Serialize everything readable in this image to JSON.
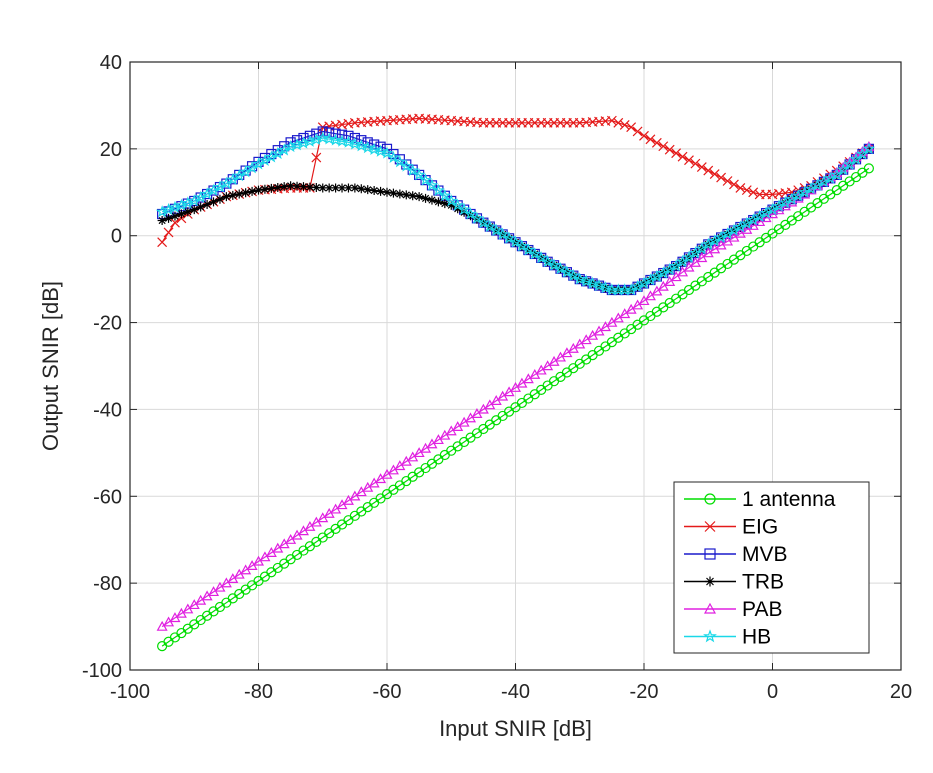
{
  "chart_data": {
    "type": "line",
    "title": "",
    "xlabel": "Input SNIR [dB]",
    "ylabel": "Output SNIR [dB]",
    "xlim": [
      -100,
      20
    ],
    "ylim": [
      -100,
      40
    ],
    "xticks": [
      -100,
      -80,
      -60,
      -40,
      -20,
      0,
      20
    ],
    "yticks": [
      -100,
      -80,
      -60,
      -40,
      -20,
      0,
      20,
      40
    ],
    "xtick_labels": [
      "-100",
      "-80",
      "-60",
      "-40",
      "-20",
      "0",
      "20"
    ],
    "ytick_labels": [
      "-100",
      "-80",
      "-60",
      "-40",
      "-20",
      "0",
      "20",
      "40"
    ],
    "grid": true,
    "legend_position": "bottom-right",
    "x_range": [
      -95,
      15
    ],
    "x_step": 1,
    "series": [
      {
        "name": "1 antenna",
        "color": "#00dd00",
        "marker": "circle",
        "x": [
          -95,
          15
        ],
        "y": [
          -94.5,
          15.5
        ]
      },
      {
        "name": "EIG",
        "color": "#e41a1a",
        "marker": "x",
        "x": [
          -95,
          -93,
          -90,
          -85,
          -80,
          -75,
          -72,
          -70,
          -65,
          -60,
          -55,
          -50,
          -45,
          -40,
          -35,
          -30,
          -25,
          -22,
          -20,
          -15,
          -10,
          -5,
          -2,
          0,
          3,
          6,
          10,
          15
        ],
        "y": [
          -1.5,
          3,
          6,
          9,
          10.5,
          11,
          11,
          25,
          26,
          26.5,
          27,
          26.5,
          26,
          26,
          26,
          26,
          26.5,
          25,
          23,
          19,
          15,
          11,
          9.5,
          9.5,
          10,
          11.5,
          15,
          20
        ]
      },
      {
        "name": "MVB",
        "color": "#1a1acc",
        "marker": "square",
        "x": [
          -95,
          -90,
          -85,
          -80,
          -75,
          -70,
          -66,
          -60,
          -55,
          -50,
          -45,
          -40,
          -35,
          -30,
          -25,
          -22,
          -20,
          -15,
          -10,
          -5,
          0,
          5,
          10,
          15
        ],
        "y": [
          5,
          8,
          12,
          17,
          21.5,
          24,
          23,
          20,
          14,
          8,
          3,
          -1.5,
          -6,
          -10,
          -12.5,
          -12.5,
          -11,
          -7,
          -2,
          2,
          6,
          10,
          14,
          20
        ]
      },
      {
        "name": "TRB",
        "color": "#000000",
        "marker": "asterisk",
        "x": [
          -95,
          -90,
          -85,
          -80,
          -75,
          -70,
          -65,
          -60,
          -55,
          -50,
          -45,
          -40,
          -35,
          -30,
          -25,
          -22,
          -20,
          -15,
          -10,
          -5,
          0,
          5,
          10,
          15
        ],
        "y": [
          3.5,
          6,
          9,
          10.5,
          11.5,
          11,
          11,
          10,
          9,
          7,
          3,
          -1.5,
          -6,
          -10,
          -12.5,
          -12.5,
          -11,
          -7,
          -2,
          2,
          6,
          10,
          14,
          20
        ]
      },
      {
        "name": "PAB",
        "color": "#e020e0",
        "marker": "triangle",
        "x": [
          -95,
          -20,
          -15,
          -10,
          -5,
          0,
          5,
          10,
          15
        ],
        "y": [
          -90,
          -15,
          -9.5,
          -4,
          0.5,
          5,
          9.5,
          14.5,
          20.5
        ]
      },
      {
        "name": "HB",
        "color": "#1ad8e8",
        "marker": "star",
        "x": [
          -95,
          -90,
          -85,
          -80,
          -75,
          -70,
          -66,
          -60,
          -55,
          -50,
          -45,
          -40,
          -35,
          -30,
          -25,
          -22,
          -20,
          -15,
          -10,
          -5,
          0,
          5,
          10,
          15
        ],
        "y": [
          5.5,
          8,
          12,
          16.5,
          20.5,
          22.5,
          21.5,
          19,
          14,
          8,
          3,
          -1.5,
          -6,
          -10,
          -12.5,
          -12.5,
          -11,
          -7,
          -2,
          2,
          6,
          10,
          14,
          20
        ]
      }
    ]
  }
}
